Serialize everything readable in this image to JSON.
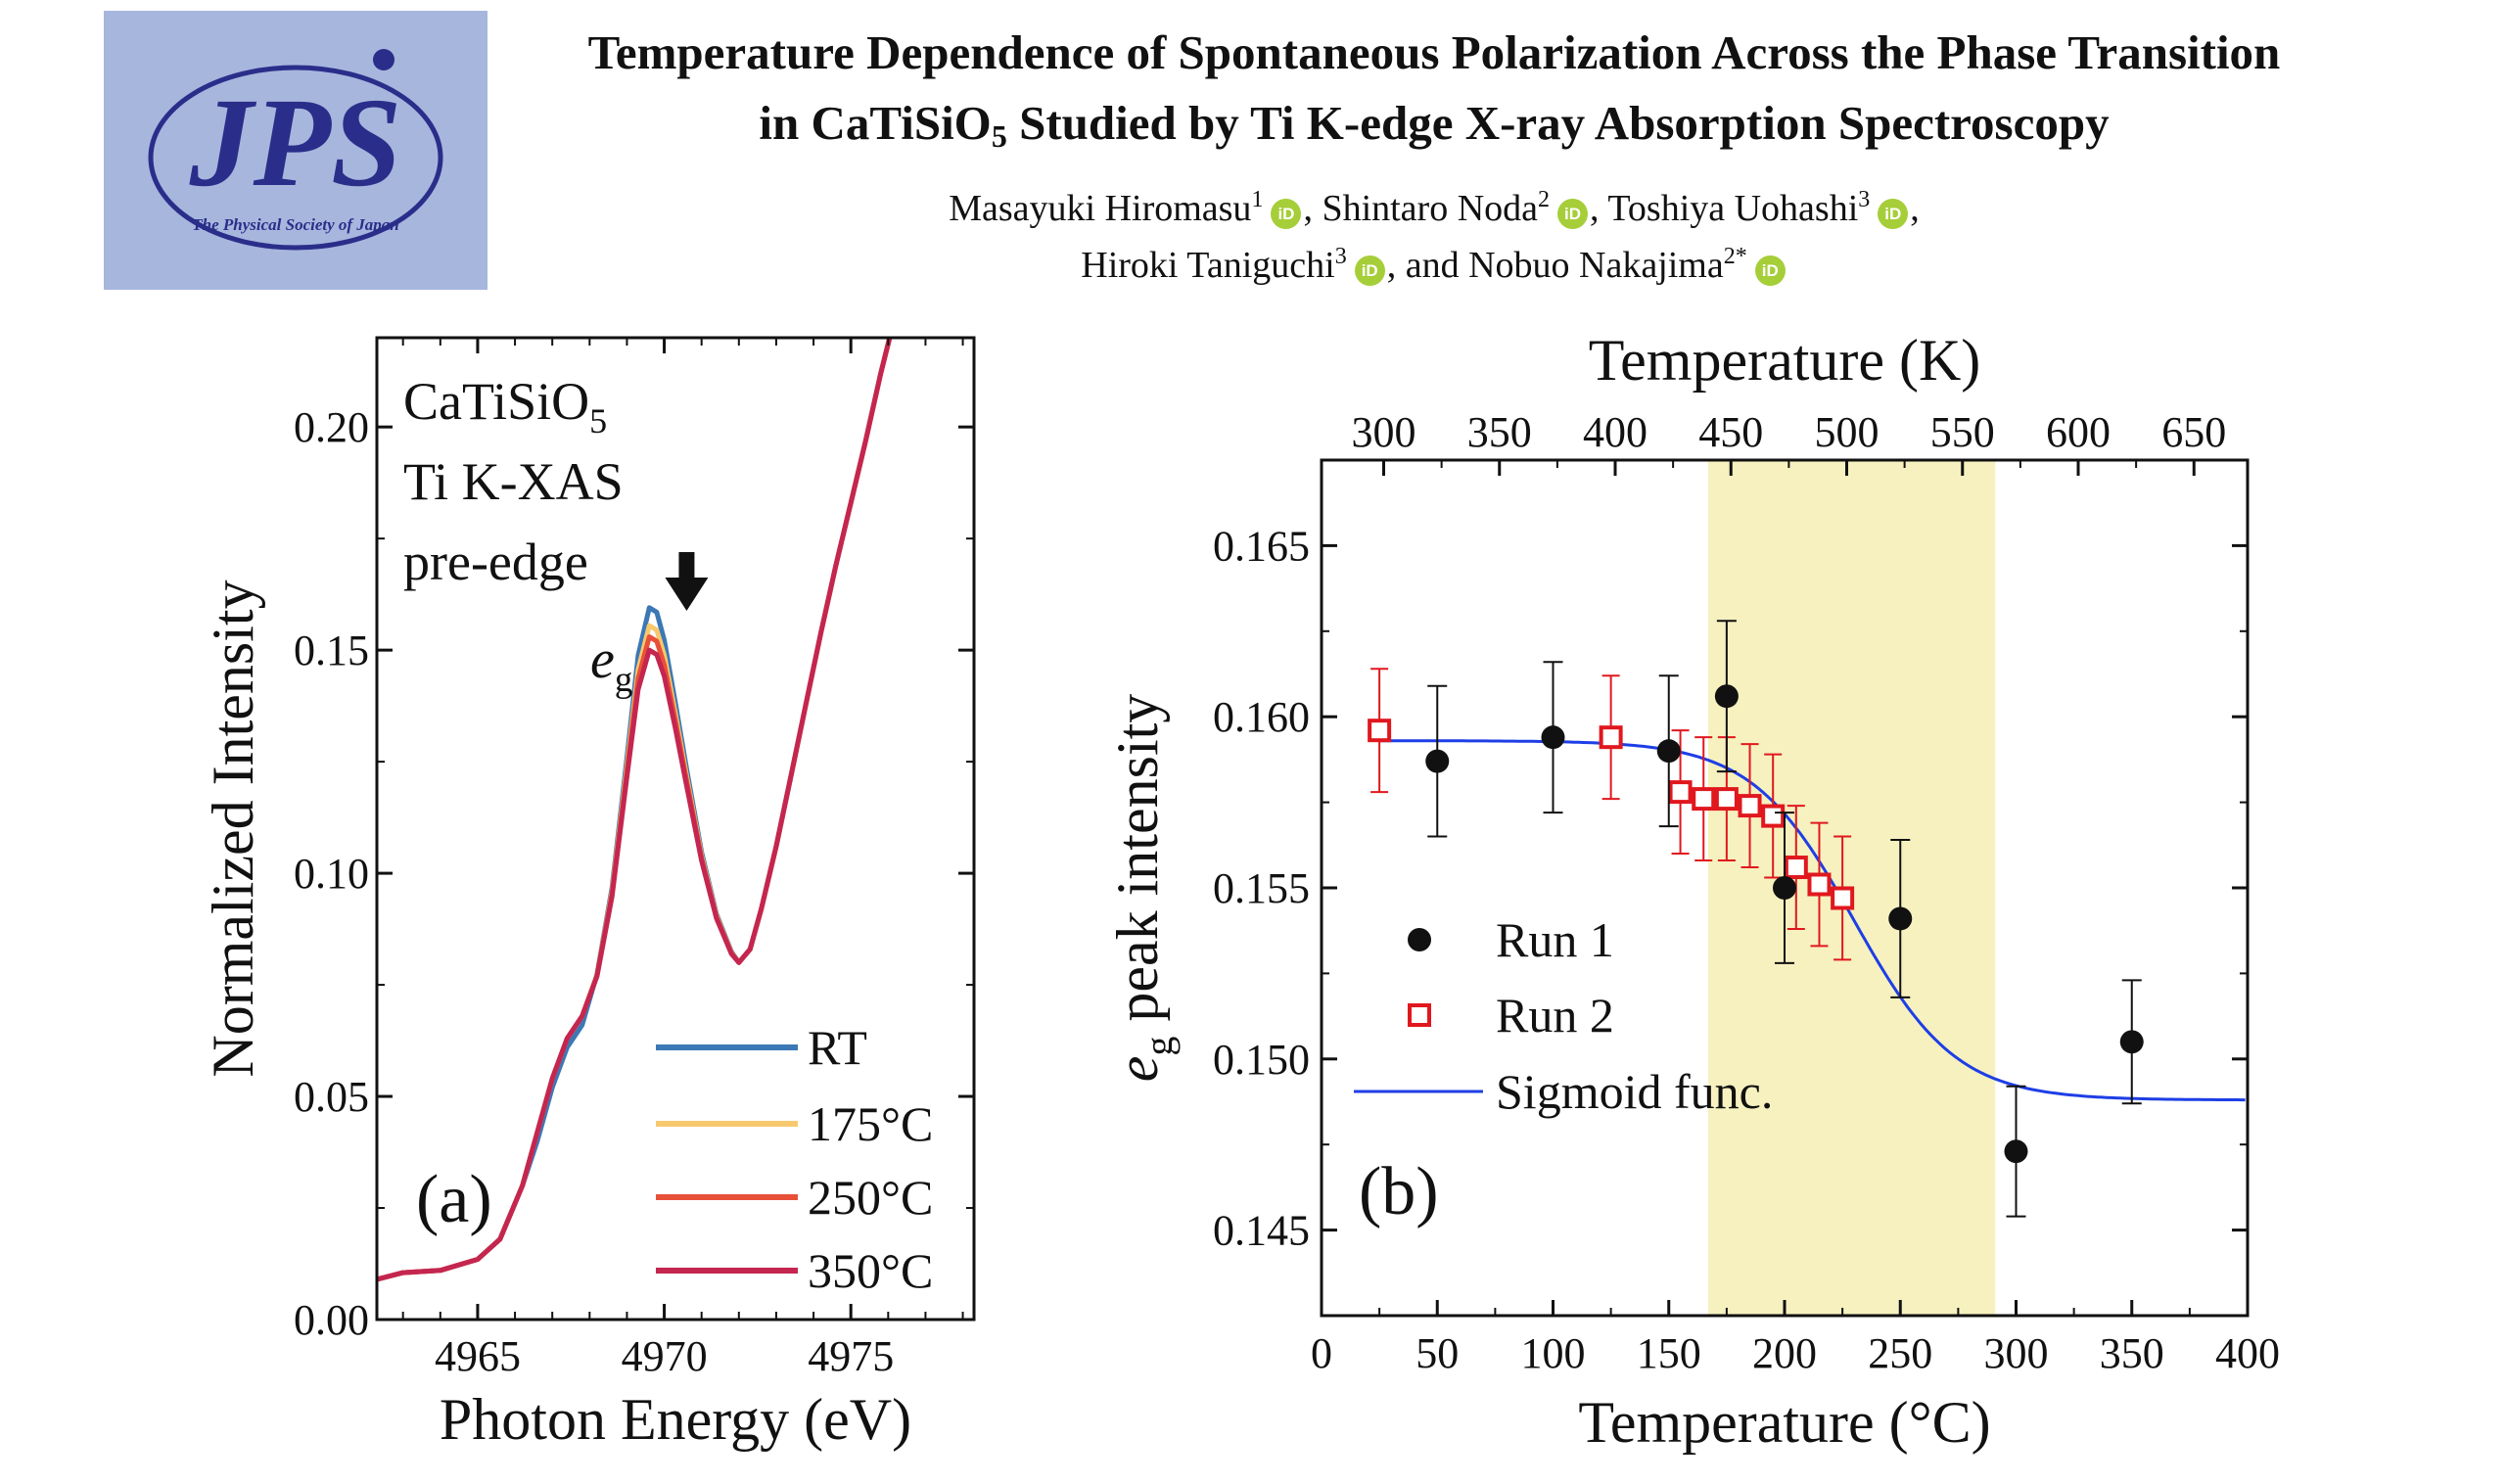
{
  "header": {
    "logo_text": "JPS",
    "logo_subtext": "The Physical Society of Japan",
    "title_line1": "Temperature Dependence of Spontaneous Polarization Across the Phase Transition",
    "title_line2_pre": "in CaTiSiO",
    "title_line2_sub": "5",
    "title_line2_post": " Studied by Ti K-edge X-ray Absorption Spectroscopy",
    "orcid_label": "iD",
    "authors": [
      {
        "name": "Masayuki Hiromasu",
        "aff": "1",
        "sep": ", "
      },
      {
        "name": "Shintaro Noda",
        "aff": "2",
        "sep": ", "
      },
      {
        "name": "Toshiya Uohashi",
        "aff": "3",
        "sep": ","
      },
      {
        "name": "Hiroki Taniguchi",
        "aff": "3",
        "sep": ", and "
      },
      {
        "name": "Nobuo Nakajima",
        "aff": "2*",
        "sep": ""
      }
    ]
  },
  "colors": {
    "rt": "#3b78b5",
    "t175": "#f7c96e",
    "t250": "#e8503a",
    "t350": "#c42650",
    "run2": "#e0181e",
    "sigmoid": "#1e3ee6",
    "shade": "#f6f1bf"
  },
  "chart_data": [
    {
      "type": "line",
      "panel_label": "(a)",
      "xlabel": "Photon Energy (eV)",
      "ylabel": "Normalized Intensity",
      "xlim": [
        4962.3,
        4978.3
      ],
      "ylim": [
        0.0,
        0.22
      ],
      "xticks": [
        4965,
        4970,
        4975
      ],
      "yticks": [
        0.0,
        0.05,
        0.1,
        0.15,
        0.2
      ],
      "ytick_labels": [
        "0.00",
        "0.05",
        "0.10",
        "0.15",
        "0.20"
      ],
      "annotation_lines": [
        "CaTiSiO",
        "Ti K-XAS",
        "pre-edge"
      ],
      "annotation_sub": "5",
      "peak_label": "e",
      "peak_label_sub": "g",
      "arrow_at": {
        "x": 4970.6,
        "y": 0.161
      },
      "legend": [
        "RT",
        "175°C",
        "250°C",
        "350°C"
      ],
      "series": [
        {
          "name": "RT",
          "peak": 0.1595
        },
        {
          "name": "175°C",
          "peak": 0.1555
        },
        {
          "name": "250°C",
          "peak": 0.153
        },
        {
          "name": "350°C",
          "peak": 0.15
        }
      ],
      "x": [
        4962.3,
        4963.0,
        4964.0,
        4965.0,
        4965.6,
        4966.2,
        4966.6,
        4967.0,
        4967.4,
        4967.8,
        4968.2,
        4968.6,
        4969.0,
        4969.3,
        4969.6,
        4969.8,
        4970.0,
        4970.3,
        4970.6,
        4971.0,
        4971.4,
        4971.8,
        4972.0,
        4972.3,
        4972.6,
        4973.0,
        4973.4,
        4973.8,
        4974.2,
        4974.6,
        4975.0,
        4975.4,
        4975.8,
        4976.1
      ],
      "base": [
        0.009,
        0.0105,
        0.011,
        0.0135,
        0.018,
        0.03,
        0.042,
        0.054,
        0.063,
        0.068,
        0.077,
        0.095,
        0.122,
        0.142,
        0.151,
        0.15,
        0.145,
        0.133,
        0.12,
        0.103,
        0.09,
        0.082,
        0.08,
        0.083,
        0.092,
        0.106,
        0.122,
        0.138,
        0.154,
        0.169,
        0.183,
        0.197,
        0.212,
        0.222
      ],
      "shape": [
        0,
        0,
        0,
        0,
        0,
        0,
        0,
        0,
        0,
        0,
        0.05,
        0.2,
        0.45,
        0.8,
        1.0,
        1.0,
        0.85,
        0.6,
        0.4,
        0.2,
        0.1,
        0.05,
        0,
        0,
        0,
        0,
        0,
        0,
        0,
        0,
        0,
        0,
        0,
        0
      ]
    },
    {
      "type": "scatter",
      "panel_label": "(b)",
      "xlabel": "Temperature (°C)",
      "top_xlabel": "Temperature (K)",
      "ylabel": "e",
      "ylabel_sub": "g",
      "ylabel_post": " peak intensity",
      "xlim": [
        0,
        400
      ],
      "ylim": [
        0.1425,
        0.1675
      ],
      "xticks": [
        0,
        50,
        100,
        150,
        200,
        250,
        300,
        350,
        400
      ],
      "yticks": [
        0.145,
        0.15,
        0.155,
        0.16,
        0.165
      ],
      "ytick_labels": [
        "0.145",
        "0.150",
        "0.155",
        "0.160",
        "0.165"
      ],
      "top_xticks": [
        300,
        350,
        400,
        450,
        500,
        550,
        600,
        650
      ],
      "shaded_region": [
        167,
        291
      ],
      "legend": [
        "Run 1",
        "Run 2",
        "Sigmoid func."
      ],
      "series": [
        {
          "name": "Run 1",
          "x": [
            50,
            100,
            150,
            175,
            200,
            250,
            300,
            350
          ],
          "y": [
            0.1587,
            0.1594,
            0.159,
            0.1606,
            0.155,
            0.1541,
            0.1473,
            0.1505
          ],
          "err": [
            0.0022,
            0.0022,
            0.0022,
            0.0022,
            0.0022,
            0.0023,
            0.0019,
            0.0018
          ]
        },
        {
          "name": "Run 2",
          "x": [
            25,
            125,
            155,
            165,
            175,
            185,
            195,
            205,
            215,
            225
          ],
          "y": [
            0.1596,
            0.1594,
            0.1578,
            0.1576,
            0.1576,
            0.1574,
            0.1571,
            0.1556,
            0.1551,
            0.1547
          ],
          "err": [
            0.0018,
            0.0018,
            0.0018,
            0.0018,
            0.0018,
            0.0018,
            0.0018,
            0.0018,
            0.0018,
            0.0018
          ]
        },
        {
          "name": "Sigmoid func.",
          "A": 0.1593,
          "B": 0.1488,
          "x0": 230,
          "w": 22
        }
      ]
    }
  ]
}
